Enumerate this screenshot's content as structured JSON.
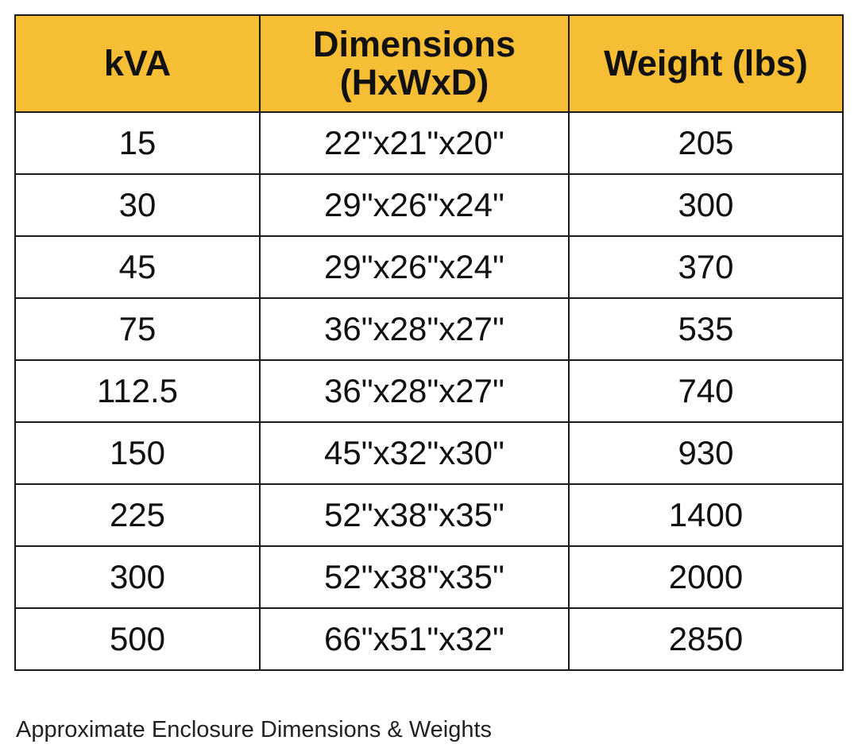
{
  "colors": {
    "header_bg": "#F6BE34",
    "border": "#1a1a1a",
    "text": "#111111"
  },
  "table": {
    "headers": [
      "kVA",
      "Dimensions (HxWxD)",
      "Weight (lbs)"
    ],
    "rows": [
      {
        "kva": "15",
        "dimensions": "22\"x21\"x20\"",
        "weight": "205"
      },
      {
        "kva": "30",
        "dimensions": "29\"x26\"x24\"",
        "weight": "300"
      },
      {
        "kva": "45",
        "dimensions": "29\"x26\"x24\"",
        "weight": "370"
      },
      {
        "kva": "75",
        "dimensions": "36\"x28\"x27\"",
        "weight": "535"
      },
      {
        "kva": "112.5",
        "dimensions": "36\"x28\"x27\"",
        "weight": "740"
      },
      {
        "kva": "150",
        "dimensions": "45\"x32\"x30\"",
        "weight": "930"
      },
      {
        "kva": "225",
        "dimensions": "52\"x38\"x35\"",
        "weight": "1400"
      },
      {
        "kva": "300",
        "dimensions": "52\"x38\"x35\"",
        "weight": "2000"
      },
      {
        "kva": "500",
        "dimensions": "66\"x51\"x32\"",
        "weight": "2850"
      }
    ]
  },
  "caption": "Approximate Enclosure Dimensions & Weights"
}
